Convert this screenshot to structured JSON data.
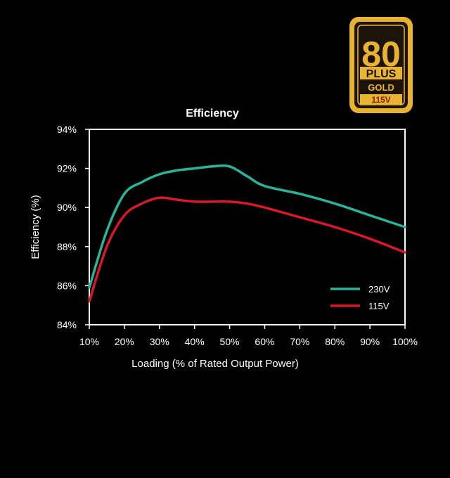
{
  "badge": {
    "number": "80",
    "plus": "PLUS",
    "level": "GOLD",
    "voltage": "115V",
    "colors": {
      "gold": "#e8b330",
      "dark": "#1c130a",
      "red": "#8a1f10"
    }
  },
  "chart_data": {
    "type": "line",
    "title": "Efficiency",
    "xlabel": "Loading (% of Rated Output Power)",
    "ylabel": "Efficiency (%)",
    "x": [
      10,
      15,
      20,
      25,
      30,
      35,
      40,
      45,
      50,
      55,
      60,
      70,
      80,
      90,
      100
    ],
    "x_ticks": [
      "10%",
      "20%",
      "30%",
      "40%",
      "50%",
      "60%",
      "70%",
      "80%",
      "90%",
      "100%"
    ],
    "y_ticks": [
      "84%",
      "86%",
      "88%",
      "90%",
      "92%",
      "94%"
    ],
    "xlim": [
      10,
      100
    ],
    "ylim": [
      84,
      94
    ],
    "grid": false,
    "legend_position": "bottom-right",
    "series": [
      {
        "name": "230V",
        "color": "#2bb39a",
        "values": [
          85.9,
          88.8,
          90.7,
          91.3,
          91.7,
          91.9,
          92.0,
          92.1,
          92.1,
          91.6,
          91.1,
          90.7,
          90.2,
          89.6,
          89.0
        ]
      },
      {
        "name": "115V",
        "color": "#d7192a",
        "values": [
          85.2,
          88.0,
          89.6,
          90.2,
          90.5,
          90.4,
          90.3,
          90.3,
          90.3,
          90.2,
          90.0,
          89.5,
          89.0,
          88.4,
          87.7
        ]
      }
    ]
  }
}
